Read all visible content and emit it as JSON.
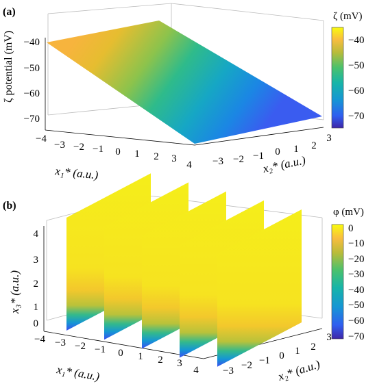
{
  "panels": [
    {
      "label": "(a)",
      "zlabel": "ζ potential (mV)",
      "xlabel": "x₁* (a.u.)",
      "ylabel": "x₂* (a.u.)",
      "colorbar": {
        "title": "ζ (mV)",
        "ticks": [
          "−40",
          "−50",
          "−60",
          "−70"
        ]
      },
      "z_ticks": [
        "−40",
        "−50",
        "−60",
        "−70"
      ],
      "x_ticks": [
        "−4",
        "−3",
        "−2",
        "−1",
        "0",
        "1",
        "2",
        "3",
        "4"
      ],
      "y_ticks": [
        "−3",
        "−2",
        "−1",
        "0",
        "1",
        "2",
        "3"
      ]
    },
    {
      "label": "(b)",
      "zlabel": "x₃* (a.u.)",
      "xlabel": "x₁* (a.u.)",
      "ylabel": "x₂* (a.u.)",
      "colorbar": {
        "title": "φ (mV)",
        "ticks": [
          "0",
          "−10",
          "−20",
          "−30",
          "−40",
          "−50",
          "−60",
          "−70"
        ]
      },
      "z_ticks": [
        "4",
        "3",
        "2",
        "1",
        "0"
      ],
      "x_ticks": [
        "−4",
        "−3",
        "−2",
        "−1",
        "0",
        "1",
        "2",
        "3",
        "4"
      ],
      "y_ticks": [
        "−3",
        "−2",
        "−1",
        "0",
        "1",
        "2",
        "3"
      ]
    }
  ],
  "chart_data": [
    {
      "type": "surface",
      "title": "",
      "x_range": [
        -4,
        4
      ],
      "y_range": [
        -3,
        3
      ],
      "z_range": [
        -75,
        -35
      ],
      "corner_values": [
        {
          "x1": -4,
          "x2": -3,
          "zeta_mV": -40
        },
        {
          "x1": 4,
          "x2": -3,
          "zeta_mV": -75
        },
        {
          "x1": 4,
          "x2": 3,
          "zeta_mV": -75
        },
        {
          "x1": -4,
          "x2": 3,
          "zeta_mV": -40
        }
      ],
      "colormap": "parula",
      "color_range": [
        -75,
        -35
      ]
    },
    {
      "type": "slices",
      "title": "",
      "slice_x1_positions": [
        -3,
        -1,
        1,
        3,
        5
      ],
      "x2_range": [
        -3,
        3
      ],
      "x3_range": [
        0,
        4.5
      ],
      "phi_bottom_mV": -70,
      "phi_top_mV": 0,
      "colormap": "parula",
      "color_range": [
        -70,
        0
      ]
    }
  ]
}
